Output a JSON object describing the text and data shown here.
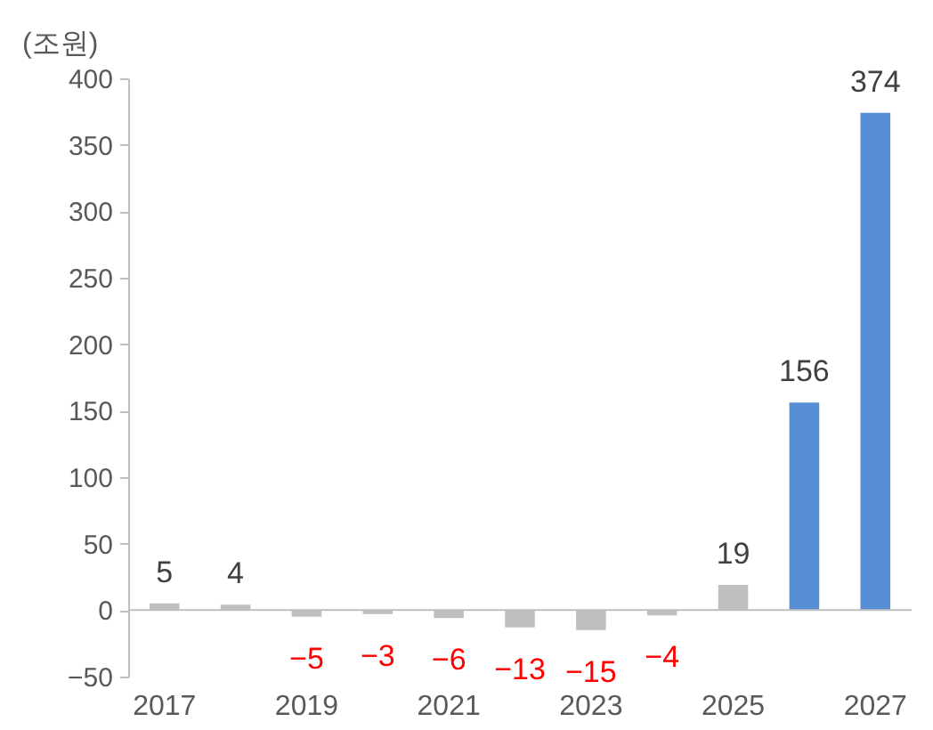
{
  "chart_data": {
    "type": "bar",
    "ylabel": "(조원)",
    "categories": [
      "2017",
      null,
      "2019",
      null,
      "2021",
      null,
      "2023",
      null,
      "2025",
      null,
      "2027"
    ],
    "values": [
      5,
      4,
      -5,
      -3,
      -6,
      -13,
      -15,
      -4,
      19,
      156,
      374
    ],
    "colors": [
      "#bfbfbf",
      "#bfbfbf",
      "#bfbfbf",
      "#bfbfbf",
      "#bfbfbf",
      "#bfbfbf",
      "#bfbfbf",
      "#bfbfbf",
      "#bfbfbf",
      "#558ed5",
      "#558ed5"
    ],
    "value_labels": [
      "5",
      "4",
      "−5",
      "−3",
      "−6",
      "−13",
      "−15",
      "−4",
      "19",
      "156",
      "374"
    ],
    "ylim": [
      -50,
      400
    ],
    "yticks": [
      -50,
      0,
      50,
      100,
      150,
      200,
      250,
      300,
      350,
      400
    ],
    "ref_lines": [
      {
        "axis": "y",
        "value": 0,
        "color": "#bfbfbf"
      }
    ],
    "grid": false
  }
}
